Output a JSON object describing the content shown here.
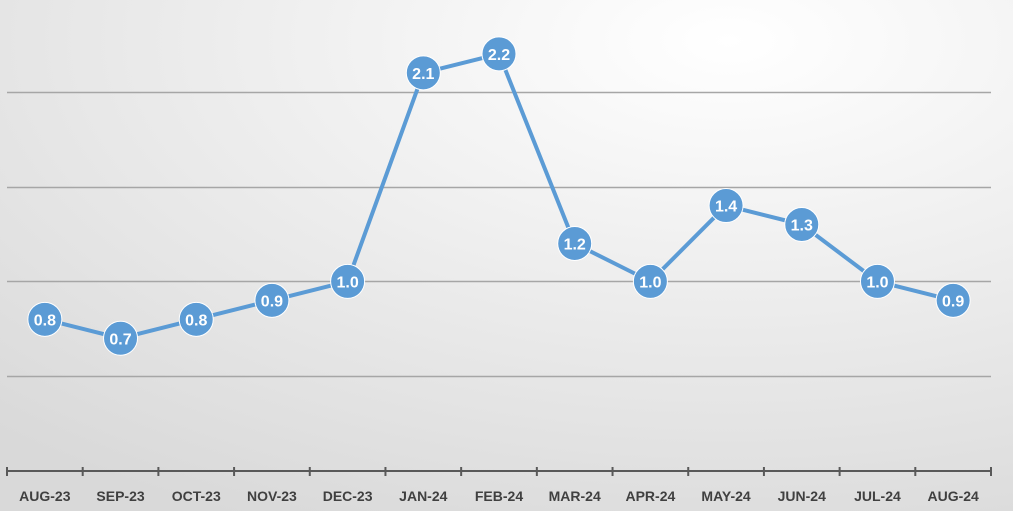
{
  "chart_data": {
    "type": "line",
    "title": "",
    "xlabel": "",
    "ylabel": "",
    "categories": [
      "AUG-23",
      "SEP-23",
      "OCT-23",
      "NOV-23",
      "DEC-23",
      "JAN-24",
      "FEB-24",
      "MAR-24",
      "APR-24",
      "MAY-24",
      "JUN-24",
      "JUL-24",
      "AUG-24"
    ],
    "series": [
      {
        "values": [
          0.8,
          0.7,
          0.8,
          0.9,
          1.0,
          2.1,
          2.2,
          1.2,
          1.0,
          1.4,
          1.3,
          1.0,
          0.9
        ]
      }
    ],
    "data_labels": [
      "0.8",
      "0.7",
      "0.8",
      "0.9",
      "1.0",
      "2.1",
      "2.2",
      "1.2",
      "1.0",
      "1.4",
      "1.3",
      "1.0",
      "0.9"
    ],
    "ylim": [
      0,
      2.5
    ],
    "gridlines": [
      0.5,
      1.0,
      1.5,
      2.0
    ],
    "y_tick_labels_shown": false,
    "grid": true,
    "legend": "none",
    "colors": {
      "line": "#5B9BD5",
      "marker": "#5B9BD5",
      "marker_text": "#FFFFFF",
      "gridline": "#A6A6A6",
      "axis": "#595959",
      "tick_text": "#404040",
      "background_center": "#FFFFFF",
      "background_edge": "#D9D9D9"
    }
  }
}
